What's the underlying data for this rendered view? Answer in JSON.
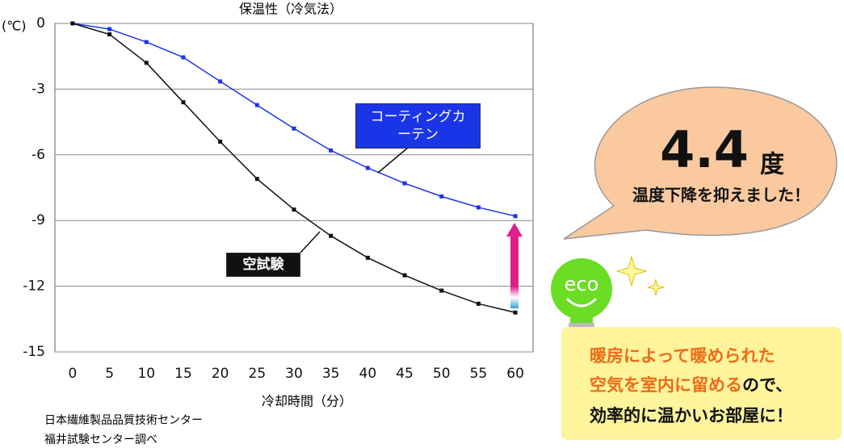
{
  "chart_data": {
    "type": "line",
    "title": "保温性（冷気法）",
    "y_unit": "(℃)",
    "x_label": "冷却時間（分）",
    "x": [
      0,
      5,
      10,
      15,
      20,
      25,
      30,
      35,
      40,
      45,
      50,
      55,
      60
    ],
    "xlim": [
      -2.4,
      62.4
    ],
    "xticks": [
      0,
      5,
      10,
      15,
      20,
      25,
      30,
      35,
      40,
      45,
      50,
      55,
      60
    ],
    "ylim": [
      -15,
      0
    ],
    "yticks": [
      0,
      -3,
      -6,
      -9,
      -12,
      -15
    ],
    "grid": true,
    "series": [
      {
        "name": "コーティングカーテン",
        "color": "#1a35e8",
        "values": [
          0,
          -0.26,
          -0.85,
          -1.55,
          -2.65,
          -3.73,
          -4.8,
          -5.8,
          -6.6,
          -7.3,
          -7.9,
          -8.4,
          -8.8
        ]
      },
      {
        "name": "空試験",
        "color": "#111111",
        "values": [
          0,
          -0.5,
          -1.8,
          -3.6,
          -5.4,
          -7.1,
          -8.5,
          -9.7,
          -10.7,
          -11.5,
          -12.2,
          -12.8,
          -13.2
        ]
      }
    ],
    "source": [
      "日本繊維製品品質技術センター",
      "福井試験センター調べ"
    ],
    "callout": {
      "value": "4.4",
      "unit": "度",
      "text": "温度下降を抑えました！"
    },
    "eco": "eco",
    "panel": {
      "line1": "暖房によって暖められた",
      "line2_highlight": "空気を室内に留める",
      "line2_rest": "ので、",
      "line3": "効率的に温かいお部屋に！"
    }
  }
}
